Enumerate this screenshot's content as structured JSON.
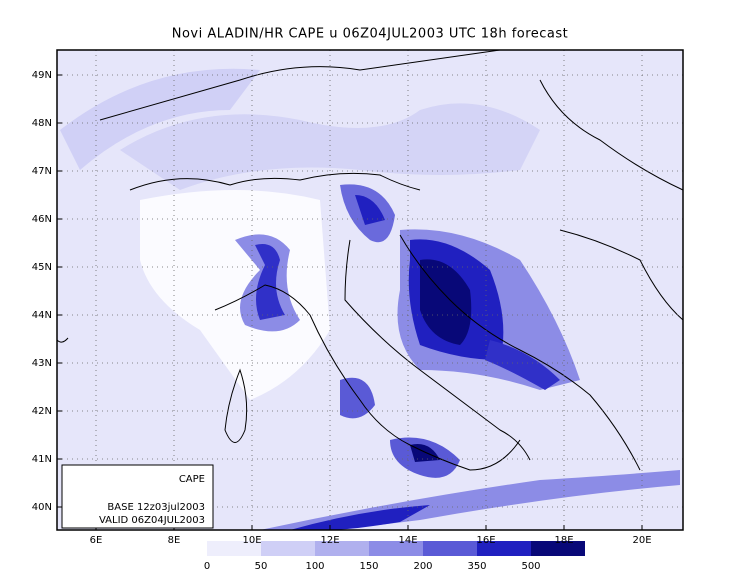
{
  "title": "Novi ALADIN/HR CAPE u 06Z04JUL2003 UTC 18h forecast",
  "lat_labels": [
    "49N",
    "48N",
    "47N",
    "46N",
    "45N",
    "44N",
    "43N",
    "42N",
    "41N",
    "40N"
  ],
  "lon_labels": [
    "6E",
    "8E",
    "10E",
    "12E",
    "14E",
    "16E",
    "18E",
    "20E"
  ],
  "info_box": {
    "field": "CAPE",
    "base": "BASE 12z03jul2003",
    "valid": "VALID 06Z04JUL2003"
  },
  "colorbar": {
    "labels": [
      "0",
      "50",
      "100",
      "150",
      "200",
      "350",
      "500"
    ],
    "colors": [
      "#eeeefc",
      "#cfcff6",
      "#b0b0ee",
      "#8c8ce6",
      "#5a5ad6",
      "#2020c0",
      "#080878"
    ]
  }
}
